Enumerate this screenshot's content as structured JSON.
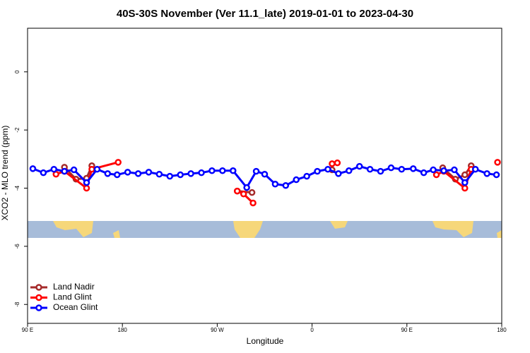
{
  "chart_data": {
    "type": "line",
    "title": "40S-30S November (Ver 11.1_late)   2019-01-01 to 2023-04-30",
    "x_label": "Longitude",
    "y_label": "XCO2 - MLO trend (ppm)",
    "xlim": [
      90,
      540
    ],
    "ylim": [
      -8.65,
      1.5
    ],
    "xticks": [
      {
        "value": 90,
        "label": "90 E"
      },
      180,
      {
        "value": 270,
        "label": "90 W"
      },
      {
        "value": 360,
        "label": "0"
      },
      {
        "value": 450,
        "label": "90 E"
      },
      {
        "value": 540,
        "label": "180"
      }
    ],
    "yticks": [
      0,
      -2,
      -4,
      -6,
      -8
    ],
    "legend": "bottom-left",
    "series": [
      {
        "name": "Land Nadir",
        "color": "#a52a2a",
        "x": [
          125,
          136,
          146,
          151,
          null,
          289,
          303,
          null,
          379,
          null,
          484,
          496,
          505,
          511
        ],
        "values": [
          -3.28,
          -3.69,
          -3.66,
          -3.23,
          null,
          -4.1,
          -4.15,
          null,
          -3.37,
          null,
          -3.3,
          -3.69,
          -3.54,
          -3.23
        ]
      },
      {
        "name": "Land Glint",
        "color": "#ff0000",
        "x": [
          117,
          125,
          146,
          151,
          176,
          null,
          289,
          295,
          304,
          null,
          379,
          384,
          null,
          478,
          485,
          505,
          511,
          null,
          536
        ],
        "values": [
          -3.52,
          -3.42,
          -4.0,
          -3.35,
          -3.11,
          null,
          -4.1,
          -4.2,
          -4.51,
          null,
          -3.16,
          -3.13,
          null,
          -3.54,
          -3.42,
          -4.0,
          -3.35,
          null,
          -3.11
        ]
      },
      {
        "name": "Ocean Glint",
        "color": "#0000ff",
        "x": [
          95,
          105,
          115,
          125,
          134,
          146,
          156,
          166,
          175,
          185,
          195,
          205,
          215,
          225,
          235,
          245,
          255,
          265,
          275,
          285,
          298,
          307,
          315,
          325,
          335,
          345,
          355,
          365,
          375,
          385,
          395,
          405,
          415,
          425,
          435,
          445,
          456,
          466,
          475,
          485,
          495,
          505,
          515,
          526,
          535
        ],
        "values": [
          -3.33,
          -3.47,
          -3.35,
          -3.42,
          -3.37,
          -3.81,
          -3.35,
          -3.5,
          -3.54,
          -3.45,
          -3.5,
          -3.45,
          -3.52,
          -3.59,
          -3.54,
          -3.5,
          -3.47,
          -3.4,
          -3.4,
          -3.4,
          -3.98,
          -3.42,
          -3.52,
          -3.86,
          -3.91,
          -3.71,
          -3.59,
          -3.42,
          -3.35,
          -3.5,
          -3.4,
          -3.25,
          -3.35,
          -3.42,
          -3.3,
          -3.35,
          -3.33,
          -3.47,
          -3.37,
          -3.4,
          -3.37,
          -3.81,
          -3.35,
          -3.5,
          -3.54
        ]
      }
    ]
  }
}
